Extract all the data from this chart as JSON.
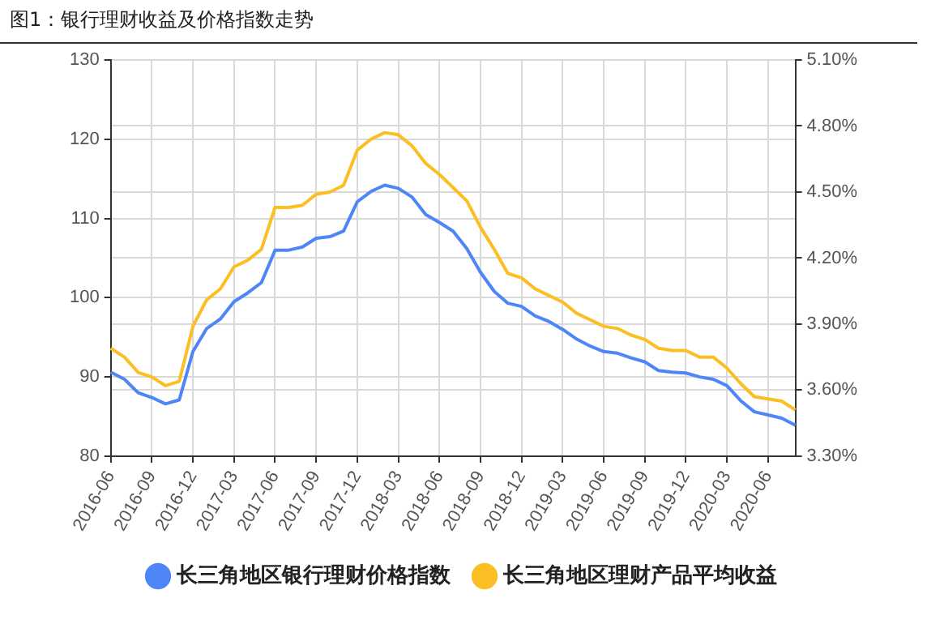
{
  "chart_data": {
    "type": "line",
    "title": "图1：银行理财收益及价格指数走势",
    "categories": [
      "2016-06",
      null,
      null,
      "2016-09",
      null,
      null,
      "2016-12",
      null,
      null,
      "2017-03",
      null,
      null,
      "2017-06",
      null,
      null,
      "2017-09",
      null,
      null,
      "2017-12",
      null,
      null,
      "2018-03",
      null,
      null,
      "2018-06",
      null,
      null,
      "2018-09",
      null,
      null,
      "2018-12",
      null,
      null,
      "2019-03",
      null,
      null,
      "2019-06",
      null,
      null,
      "2019-09",
      null,
      null,
      "2019-12",
      null,
      null,
      "2020-03",
      null,
      null,
      "2020-06",
      null,
      null
    ],
    "series": [
      {
        "name": "长三角地区银行理财价格指数",
        "color": "#4f86f7",
        "values": [
          90.6,
          89.7,
          88.0,
          87.4,
          86.6,
          87.1,
          93.2,
          96.1,
          97.3,
          99.5,
          100.6,
          101.9,
          106.0,
          106.0,
          106.4,
          107.5,
          107.7,
          108.4,
          112.1,
          113.4,
          114.2,
          113.8,
          112.7,
          110.5,
          109.5,
          108.4,
          106.2,
          103.2,
          100.8,
          99.3,
          98.9,
          97.7,
          97.0,
          96.0,
          94.8,
          93.9,
          93.2,
          93.0,
          92.4,
          91.9,
          90.8,
          90.6,
          90.5,
          90.0,
          89.7,
          88.9,
          87.0,
          85.6,
          85.2,
          84.8,
          83.9
        ]
      },
      {
        "name": "长三角地区理财产品平均收益",
        "color": "#fbbf24",
        "axis": "y2",
        "values": [
          3.79,
          3.75,
          3.68,
          3.66,
          3.62,
          3.64,
          3.89,
          4.01,
          4.06,
          4.16,
          4.19,
          4.24,
          4.43,
          4.43,
          4.44,
          4.49,
          4.5,
          4.53,
          4.69,
          4.74,
          4.77,
          4.76,
          4.71,
          4.63,
          4.58,
          4.52,
          4.46,
          4.34,
          4.24,
          4.13,
          4.11,
          4.06,
          4.03,
          4.0,
          3.95,
          3.92,
          3.89,
          3.88,
          3.85,
          3.83,
          3.79,
          3.78,
          3.78,
          3.75,
          3.75,
          3.7,
          3.63,
          3.57,
          3.56,
          3.55,
          3.51
        ]
      }
    ],
    "ylim": [
      80,
      130
    ],
    "yticks": [
      80,
      90,
      100,
      110,
      120,
      130
    ],
    "y2lim": [
      3.3,
      5.1
    ],
    "y2ticks": [
      {
        "value": 3.3,
        "label": "3.30%"
      },
      {
        "value": 3.6,
        "label": "3.60%"
      },
      {
        "value": 3.9,
        "label": "3.90%"
      },
      {
        "value": 4.2,
        "label": "4.20%"
      },
      {
        "value": 4.5,
        "label": "4.50%"
      },
      {
        "value": 4.8,
        "label": "4.80%"
      },
      {
        "value": 5.1,
        "label": "5.10%"
      }
    ],
    "grid": true,
    "legend": "bottom",
    "marker": "none",
    "line_style": "solid"
  }
}
